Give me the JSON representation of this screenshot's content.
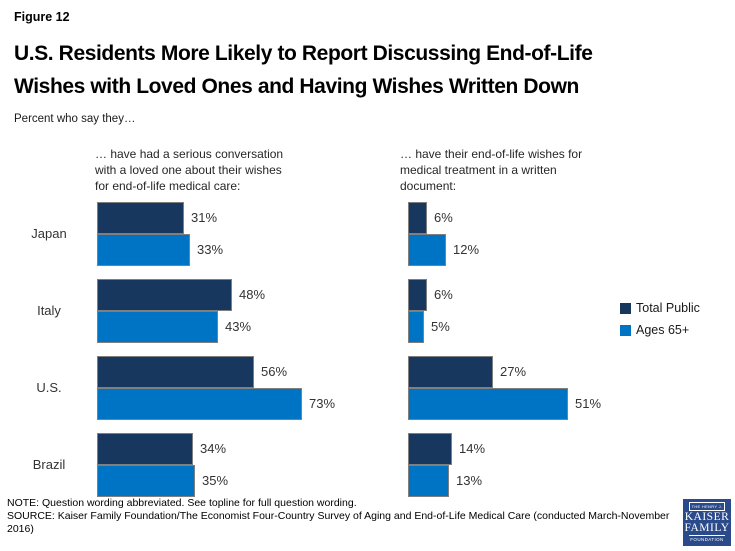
{
  "figure_label": "Figure 12",
  "title": "U.S. Residents More Likely to Report Discussing End-of-Life\nWishes with Loved Ones and Having Wishes Written Down",
  "subtitle": "Percent who say they…",
  "chart_data": {
    "type": "bar",
    "orientation": "horizontal",
    "categories": [
      "Japan",
      "Italy",
      "U.S.",
      "Brazil"
    ],
    "legend": [
      {
        "name": "Total Public",
        "color": "#17375e"
      },
      {
        "name": "Ages 65+",
        "color": "#0074c4"
      }
    ],
    "legend_position": "right",
    "grid": false,
    "xlim": [
      0,
      100
    ],
    "value_suffix": "%",
    "panels": [
      {
        "title": "… have had a serious conversation\nwith a loved one about their wishes\nfor end-of-life medical care:",
        "series": [
          {
            "name": "Total Public",
            "values": [
              31,
              48,
              56,
              34
            ]
          },
          {
            "name": "Ages 65+",
            "values": [
              33,
              43,
              73,
              35
            ]
          }
        ]
      },
      {
        "title": "… have their end-of-life wishes for\nmedical treatment in a written\ndocument:",
        "series": [
          {
            "name": "Total Public",
            "values": [
              6,
              6,
              27,
              14
            ]
          },
          {
            "name": "Ages 65+",
            "values": [
              12,
              5,
              51,
              13
            ]
          }
        ]
      }
    ]
  },
  "footer": {
    "note": "NOTE: Question wording abbreviated. See topline for full question wording.",
    "source": "SOURCE: Kaiser Family Foundation/The Economist Four-Country Survey of Aging and End-of-Life Medical Care (conducted March-November 2016)"
  },
  "logo": {
    "top": "THE HENRY J.",
    "name1": "KAISER",
    "name2": "FAMILY",
    "bottom": "FOUNDATION"
  },
  "colors": {
    "total_public": "#17375e",
    "ages_65_plus": "#0074c4",
    "bar_border": "#7f7f7f",
    "logo_bg": "#2b4a8b"
  }
}
